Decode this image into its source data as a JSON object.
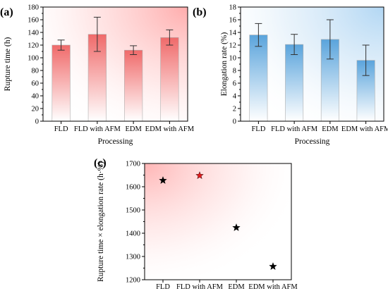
{
  "chart_data": [
    {
      "panel": "(a)",
      "type": "bar",
      "categories": [
        "FLD",
        "FLD with AFM",
        "EDM",
        "EDM with AFM"
      ],
      "values": [
        120,
        137,
        112,
        132
      ],
      "errors": [
        8,
        27,
        7,
        12
      ],
      "xlabel": "Processing",
      "ylabel": "Rupture time (h)",
      "ylim": [
        0,
        180
      ],
      "yticks": [
        0,
        20,
        40,
        60,
        80,
        100,
        120,
        140,
        160,
        180
      ],
      "bar_color": "#f17a7a",
      "background": "pink-gradient"
    },
    {
      "panel": "(b)",
      "type": "bar",
      "categories": [
        "FLD",
        "FLD with AFM",
        "EDM",
        "EDM with AFM"
      ],
      "values": [
        13.6,
        12.1,
        12.9,
        9.6
      ],
      "errors": [
        1.8,
        1.6,
        3.1,
        2.4
      ],
      "xlabel": "Processing",
      "ylabel": "Elongation rate (%)",
      "ylim": [
        0,
        18
      ],
      "yticks": [
        0,
        2,
        4,
        6,
        8,
        10,
        12,
        14,
        16,
        18
      ],
      "bar_color": "#6aaee0",
      "background": "blue-gradient"
    },
    {
      "panel": "(c)",
      "type": "scatter",
      "categories": [
        "FLD",
        "FLD with AFM",
        "EDM",
        "EDM with AFM"
      ],
      "values": [
        1627,
        1648,
        1424,
        1257
      ],
      "marker": "star",
      "marker_colors": [
        "#000000",
        "#e31a1c",
        "#000000",
        "#000000"
      ],
      "xlabel": "",
      "ylabel": "Rupture time × elongation rate (h·%)",
      "ylim": [
        1200,
        1700
      ],
      "yticks": [
        1200,
        1300,
        1400,
        1500,
        1600,
        1700
      ],
      "background": "pink-gradient"
    }
  ]
}
